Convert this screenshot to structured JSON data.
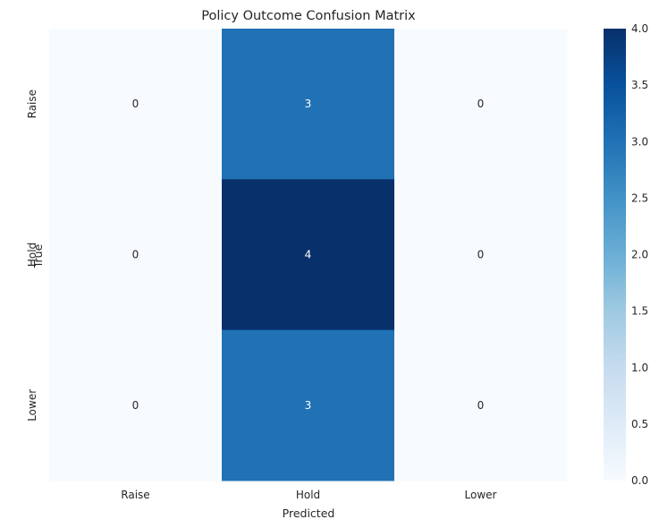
{
  "chart_data": {
    "type": "heatmap",
    "title": "Policy Outcome Confusion Matrix",
    "xlabel": "Predicted",
    "ylabel": "True",
    "x_categories": [
      "Raise",
      "Hold",
      "Lower"
    ],
    "y_categories": [
      "Raise",
      "Hold",
      "Lower"
    ],
    "values": [
      [
        0,
        3,
        0
      ],
      [
        0,
        4,
        0
      ],
      [
        0,
        3,
        0
      ]
    ],
    "colormap": "Blues",
    "vmin": 0,
    "vmax": 4,
    "colorbar_ticks": [
      "0.0",
      "0.5",
      "1.0",
      "1.5",
      "2.0",
      "2.5",
      "3.0",
      "3.5",
      "4.0"
    ],
    "colors": {
      "min": "#f7fbff",
      "max": "#08306b",
      "annotation_dark": "#262626",
      "annotation_light": "#ffffff"
    }
  }
}
